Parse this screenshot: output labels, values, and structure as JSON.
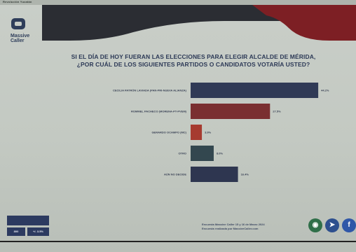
{
  "header": {
    "strip_text": "Revolución Yucatán",
    "logo_text": "Massive Caller",
    "brand_right_line1": "",
    "brand_right_line2": ""
  },
  "chart_data": {
    "type": "bar",
    "orientation": "horizontal",
    "title": "SI EL DÍA DE HOY FUERAN LAS ELECCIONES PARA ELEGIR ALCALDE DE MÉRIDA, ¿POR CUÁL DE LOS SIGUIENTES PARTIDOS O CANDIDATOS VOTARÍA USTED?",
    "title_line1": "SI EL DÍA DE HOY FUERAN LAS ELECCIONES PARA ELEGIR ALCALDE DE MÉRIDA,",
    "title_line2": "¿POR CUÁL DE LOS SIGUIENTES PARTIDOS O CANDIDATOS VOTARÍA USTED?",
    "categories": [
      "CECILIA PATRÓN LAVIADA (PAN-PRI-NUEVA ALIANZA)",
      "ROMMEL PACHECO (MORENA-PT-PVEM)",
      "GERARDO OCAMPO (MC)",
      "OTRO",
      "AÚN NO DECIDE"
    ],
    "values": [
      44.2,
      27.5,
      3.9,
      8.0,
      16.4
    ],
    "value_labels": [
      "44.2%",
      "27.5%",
      "3.9%",
      "8.0%",
      "16.4%"
    ],
    "colors": [
      "#303a56",
      "#7a2f31",
      "#a63b30",
      "#33474f",
      "#2e3650"
    ],
    "xlim": [
      0,
      50
    ],
    "xlabel": "",
    "ylabel": "",
    "grid": false,
    "legend": "none"
  },
  "footer": {
    "box_left": "800",
    "box_right": "+/- 3.5%",
    "source_line1": "Encuesta Massive Caller 15 y 16 de Marzo 2024",
    "source_line2": "Encuesta realizada por MassiveCaller.com",
    "social_whatsapp": "◉",
    "social_telegram": "➤",
    "social_facebook": "f"
  },
  "page_bottom": {
    "text": ""
  },
  "colors": {
    "title": "#2d3a57",
    "banner_dark": "#2b2d33",
    "banner_red": "#7d1f24",
    "background": "#c3c9c2"
  }
}
